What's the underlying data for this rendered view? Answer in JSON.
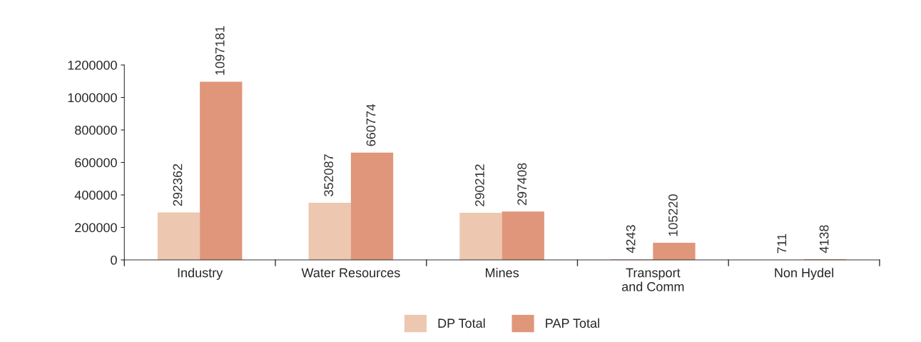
{
  "chart_data": {
    "type": "bar",
    "categories": [
      "Industry",
      "Water Resources",
      "Mines",
      "Transport\nand Comm",
      "Non Hydel"
    ],
    "series": [
      {
        "name": "DP Total",
        "color": "#edc7b0",
        "values": [
          292362,
          352087,
          290212,
          4243,
          711
        ]
      },
      {
        "name": "PAP Total",
        "color": "#e0967a",
        "values": [
          1097181,
          660774,
          297408,
          105220,
          4138
        ]
      }
    ],
    "ylim": [
      0,
      1200000
    ],
    "yticks": [
      0,
      200000,
      400000,
      600000,
      800000,
      1000000,
      1200000
    ],
    "data_labels": true,
    "grid": false,
    "legend": "bottom"
  }
}
